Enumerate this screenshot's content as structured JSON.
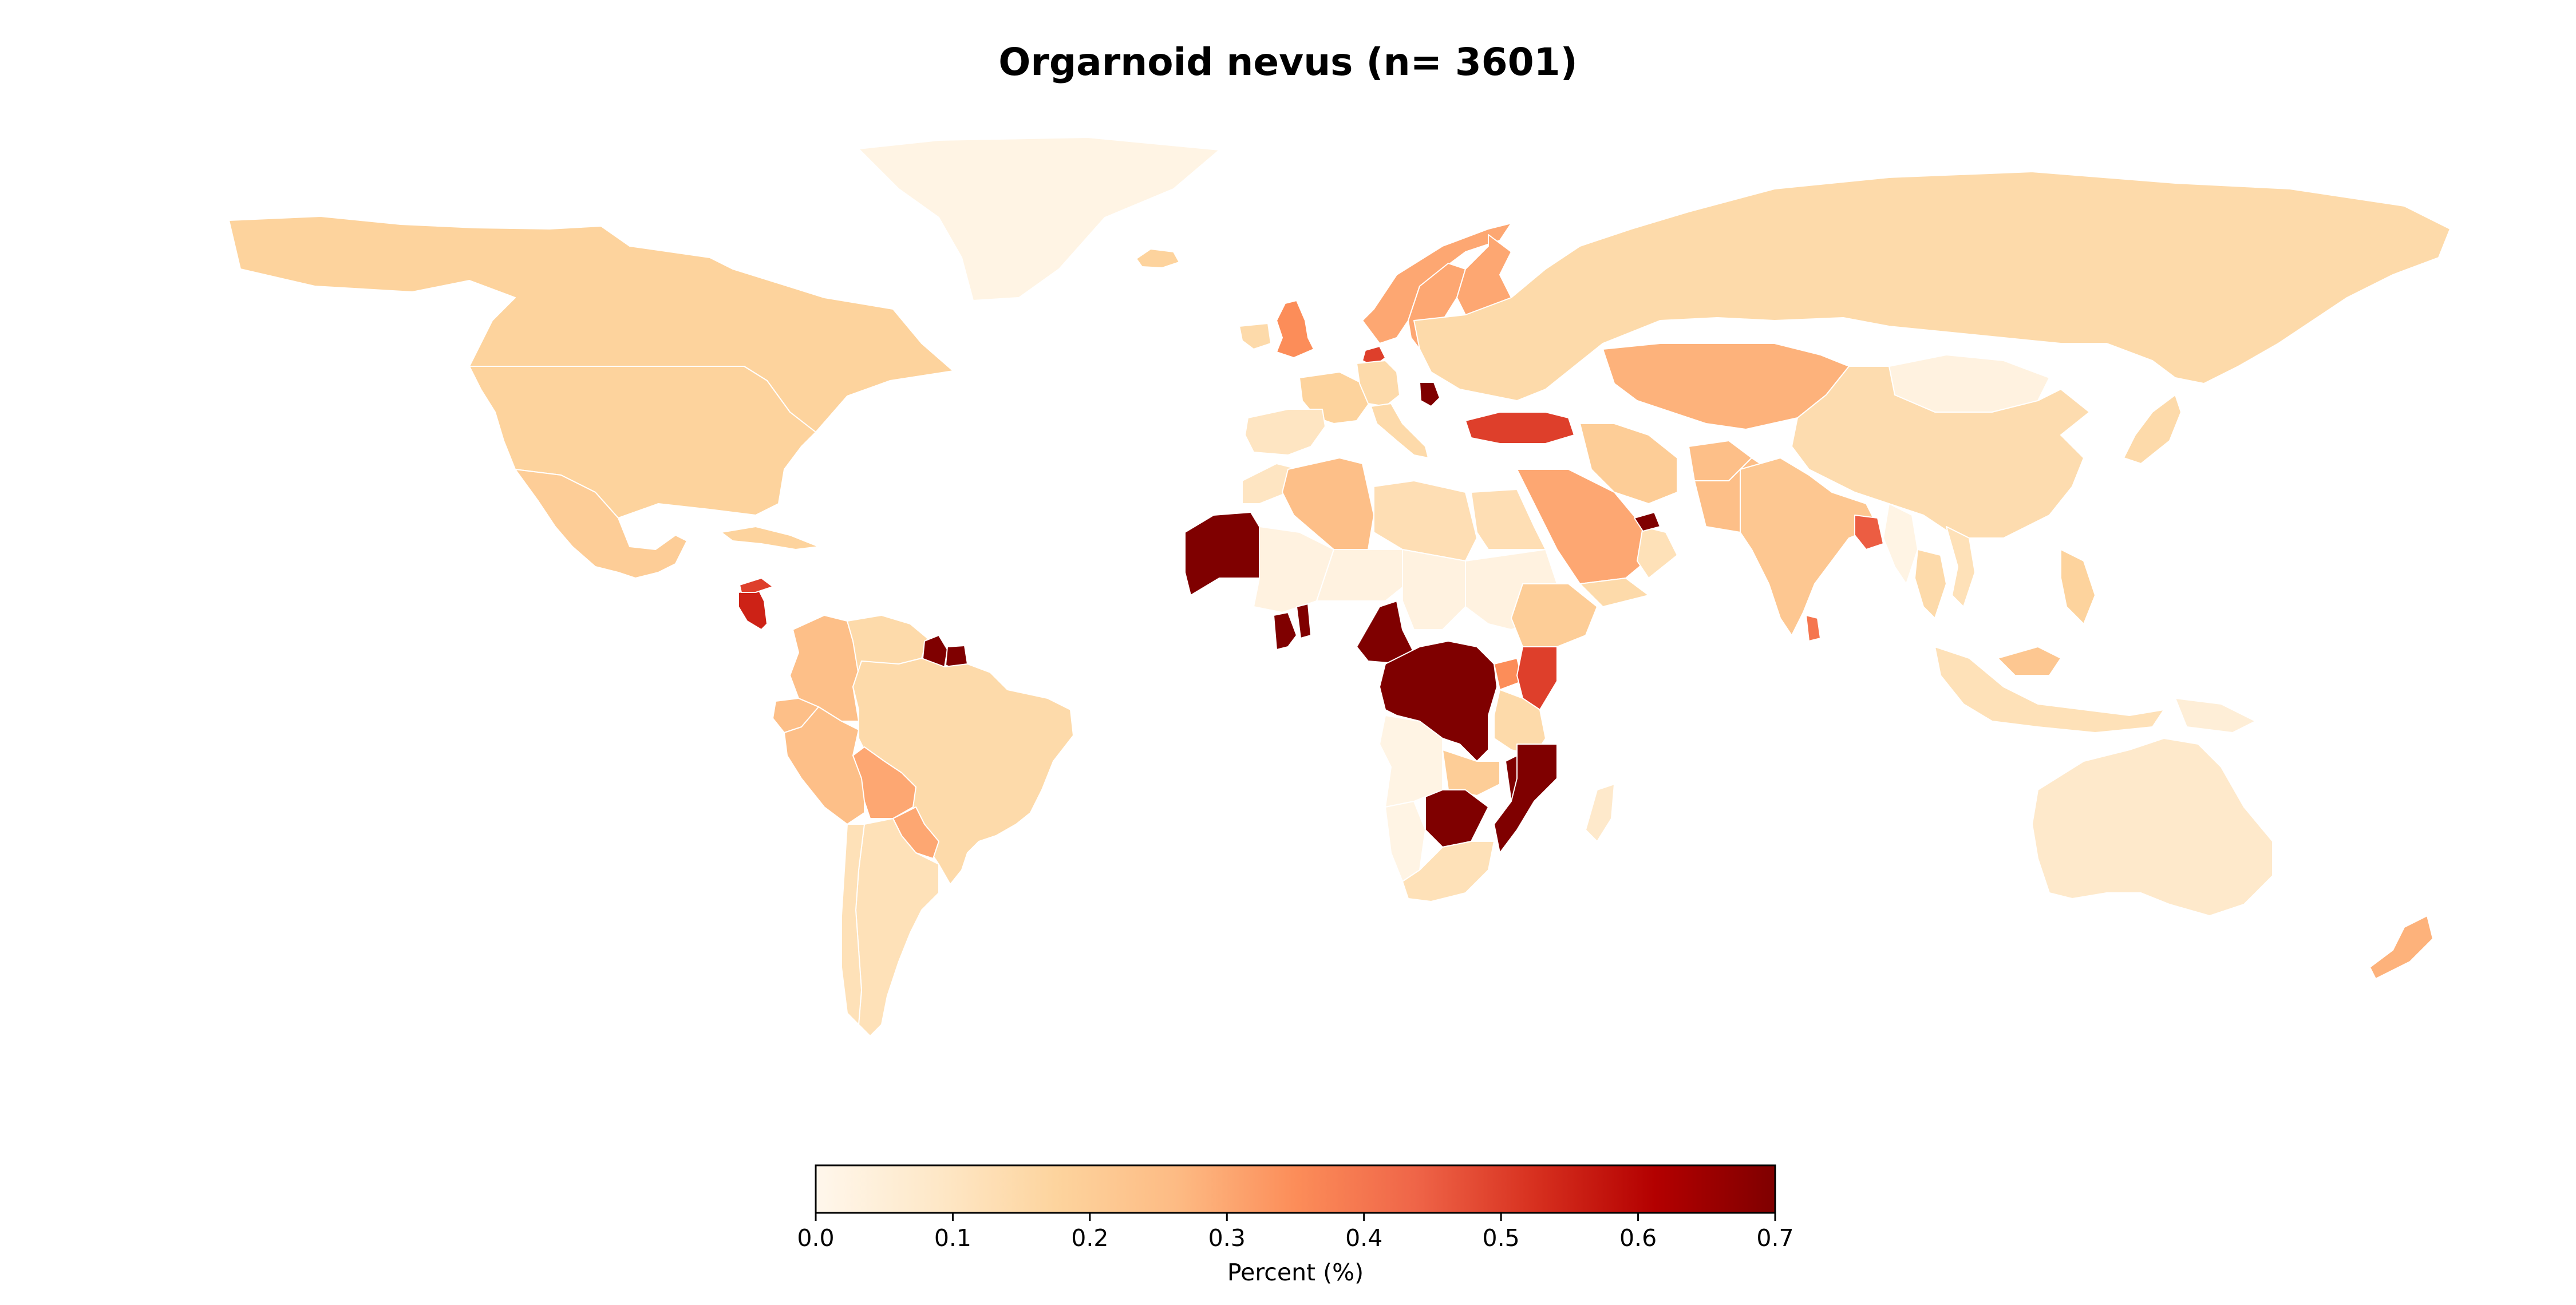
{
  "title": "Orgarnoid nevus (n= 3601)",
  "colorbar": {
    "label": "Percent (%)",
    "min": 0.0,
    "max": 0.7,
    "ticks": [
      "0.0",
      "0.1",
      "0.2",
      "0.3",
      "0.4",
      "0.5",
      "0.6",
      "0.7"
    ],
    "colormap": "OrRd",
    "stops": [
      "#fff7ec",
      "#fee8c8",
      "#fdd49e",
      "#fdbb84",
      "#fc8d59",
      "#ef6548",
      "#d7301f",
      "#b30000",
      "#7f0000"
    ]
  },
  "chart_data": {
    "type": "choropleth",
    "value_unit": "Percent (%)",
    "regions": [
      {
        "name": "Greenland",
        "value": 0.02
      },
      {
        "name": "Canada",
        "value": 0.18
      },
      {
        "name": "United States",
        "value": 0.18
      },
      {
        "name": "Mexico",
        "value": 0.2
      },
      {
        "name": "Cuba",
        "value": 0.18
      },
      {
        "name": "Nicaragua",
        "value": 0.55
      },
      {
        "name": "Honduras",
        "value": 0.5
      },
      {
        "name": "Colombia",
        "value": 0.25
      },
      {
        "name": "Venezuela",
        "value": 0.15
      },
      {
        "name": "Guyana",
        "value": 0.7
      },
      {
        "name": "Suriname",
        "value": 0.7
      },
      {
        "name": "Ecuador",
        "value": 0.25
      },
      {
        "name": "Peru",
        "value": 0.25
      },
      {
        "name": "Brazil",
        "value": 0.15
      },
      {
        "name": "Bolivia",
        "value": 0.3
      },
      {
        "name": "Paraguay",
        "value": 0.3
      },
      {
        "name": "Argentina",
        "value": 0.12
      },
      {
        "name": "Chile",
        "value": 0.12
      },
      {
        "name": "Iceland",
        "value": 0.18
      },
      {
        "name": "United Kingdom",
        "value": 0.35
      },
      {
        "name": "Ireland",
        "value": 0.15
      },
      {
        "name": "Norway",
        "value": 0.3
      },
      {
        "name": "Sweden",
        "value": 0.3
      },
      {
        "name": "Finland",
        "value": 0.3
      },
      {
        "name": "Denmark",
        "value": 0.5
      },
      {
        "name": "France",
        "value": 0.18
      },
      {
        "name": "Spain",
        "value": 0.1
      },
      {
        "name": "Germany",
        "value": 0.15
      },
      {
        "name": "Italy",
        "value": 0.15
      },
      {
        "name": "Serbia",
        "value": 0.7
      },
      {
        "name": "Turkey",
        "value": 0.5
      },
      {
        "name": "Russia",
        "value": 0.15
      },
      {
        "name": "Kazakhstan",
        "value": 0.28
      },
      {
        "name": "Mongolia",
        "value": 0.03
      },
      {
        "name": "China",
        "value": 0.14
      },
      {
        "name": "Japan",
        "value": 0.15
      },
      {
        "name": "Morocco",
        "value": 0.1
      },
      {
        "name": "Algeria",
        "value": 0.25
      },
      {
        "name": "Libya",
        "value": 0.13
      },
      {
        "name": "Egypt",
        "value": 0.13
      },
      {
        "name": "Mauritania",
        "value": 0.7
      },
      {
        "name": "Mali",
        "value": 0.03
      },
      {
        "name": "Niger",
        "value": 0.03
      },
      {
        "name": "Chad",
        "value": 0.03
      },
      {
        "name": "Sudan",
        "value": 0.03
      },
      {
        "name": "Ghana",
        "value": 0.7
      },
      {
        "name": "Togo",
        "value": 0.7
      },
      {
        "name": "Cameroon",
        "value": 0.7
      },
      {
        "name": "DR Congo",
        "value": 0.7
      },
      {
        "name": "Uganda",
        "value": 0.35
      },
      {
        "name": "Kenya",
        "value": 0.5
      },
      {
        "name": "Ethiopia",
        "value": 0.2
      },
      {
        "name": "Tanzania",
        "value": 0.15
      },
      {
        "name": "Zambia",
        "value": 0.2
      },
      {
        "name": "Malawi",
        "value": 0.7
      },
      {
        "name": "Mozambique",
        "value": 0.7
      },
      {
        "name": "Zimbabwe",
        "value": 0.7
      },
      {
        "name": "Angola",
        "value": 0.02
      },
      {
        "name": "Namibia",
        "value": 0.02
      },
      {
        "name": "South Africa",
        "value": 0.12
      },
      {
        "name": "Madagascar",
        "value": 0.08
      },
      {
        "name": "Saudi Arabia",
        "value": 0.3
      },
      {
        "name": "Yemen",
        "value": 0.15
      },
      {
        "name": "Oman",
        "value": 0.12
      },
      {
        "name": "United Arab Emirates",
        "value": 0.7
      },
      {
        "name": "Iran",
        "value": 0.2
      },
      {
        "name": "Afghanistan",
        "value": 0.25
      },
      {
        "name": "Pakistan",
        "value": 0.25
      },
      {
        "name": "India",
        "value": 0.22
      },
      {
        "name": "Bangladesh",
        "value": 0.45
      },
      {
        "name": "Sri Lanka",
        "value": 0.4
      },
      {
        "name": "Myanmar",
        "value": 0.02
      },
      {
        "name": "Thailand",
        "value": 0.15
      },
      {
        "name": "Vietnam",
        "value": 0.12
      },
      {
        "name": "Philippines",
        "value": 0.18
      },
      {
        "name": "Malaysia",
        "value": 0.22
      },
      {
        "name": "Indonesia",
        "value": 0.12
      },
      {
        "name": "Papua New Guinea",
        "value": 0.05
      },
      {
        "name": "Australia",
        "value": 0.08
      },
      {
        "name": "New Zealand",
        "value": 0.28
      }
    ]
  }
}
